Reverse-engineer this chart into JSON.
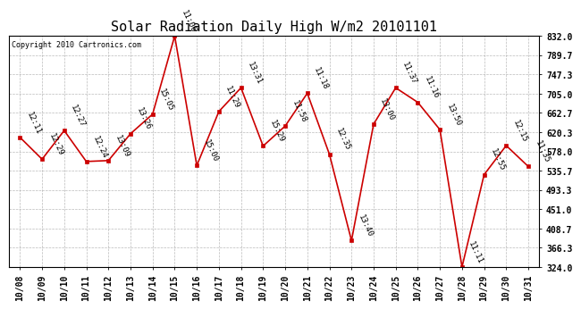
{
  "title": "Solar Radiation Daily High W/m2 20101101",
  "copyright": "Copyright 2010 Cartronics.com",
  "x_labels": [
    "10/08",
    "10/09",
    "10/10",
    "10/11",
    "10/12",
    "10/13",
    "10/14",
    "10/15",
    "10/16",
    "10/17",
    "10/18",
    "10/19",
    "10/20",
    "10/21",
    "10/22",
    "10/23",
    "10/24",
    "10/25",
    "10/26",
    "10/27",
    "10/28",
    "10/29",
    "10/30",
    "10/31"
  ],
  "y_values": [
    609,
    561,
    624,
    556,
    558,
    617,
    660,
    832,
    547,
    666,
    718,
    590,
    634,
    706,
    572,
    382,
    638,
    718,
    686,
    626,
    324,
    527,
    591,
    545
  ],
  "time_labels": [
    "12:11",
    "12:29",
    "12:27",
    "12:24",
    "13:09",
    "13:26",
    "15:05",
    "11:06",
    "15:00",
    "11:29",
    "13:31",
    "15:29",
    "11:58",
    "11:18",
    "12:35",
    "13:40",
    "13:00",
    "11:37",
    "11:16",
    "13:50",
    "11:11",
    "12:55",
    "12:15",
    "11:35"
  ],
  "y_ticks": [
    324.0,
    366.3,
    408.7,
    451.0,
    493.3,
    535.7,
    578.0,
    620.3,
    662.7,
    705.0,
    747.3,
    789.7,
    832.0
  ],
  "line_color": "#cc0000",
  "marker_color": "#cc0000",
  "background_color": "#ffffff",
  "grid_color": "#aaaaaa",
  "title_fontsize": 11,
  "tick_fontsize": 7,
  "annotation_fontsize": 6.5
}
